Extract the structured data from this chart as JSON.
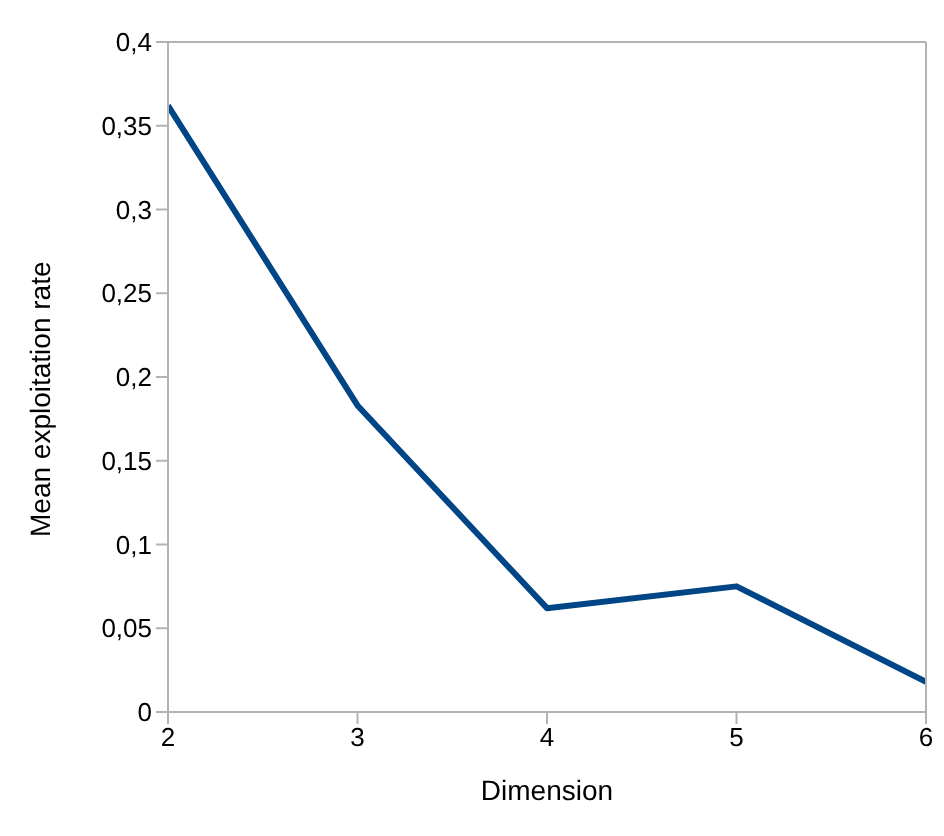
{
  "chart_data": {
    "type": "line",
    "xlabel": "Dimension",
    "ylabel": "Mean exploitation rate",
    "x": [
      2,
      3,
      4,
      5,
      6
    ],
    "series": [
      {
        "color": "#004586",
        "values": [
          0.362,
          0.183,
          0.062,
          0.075,
          0.018
        ]
      }
    ],
    "xlim": [
      2,
      6
    ],
    "xticks": [
      2,
      3,
      4,
      5,
      6
    ],
    "ylim": [
      0,
      0.4
    ],
    "yticks": [
      0,
      {
        "value": 0.05,
        "label": "0,05"
      },
      {
        "value": 0.1,
        "label": "0,1"
      },
      {
        "value": 0.15,
        "label": "0,15"
      },
      {
        "value": 0.2,
        "label": "0,2"
      },
      {
        "value": 0.25,
        "label": "0,25"
      },
      {
        "value": 0.3,
        "label": "0,3"
      },
      {
        "value": 0.35,
        "label": "0,35"
      },
      {
        "value": 0.4,
        "label": "0,4"
      }
    ],
    "grid": false,
    "legend": false,
    "marker": "none",
    "line_style": "solid"
  }
}
